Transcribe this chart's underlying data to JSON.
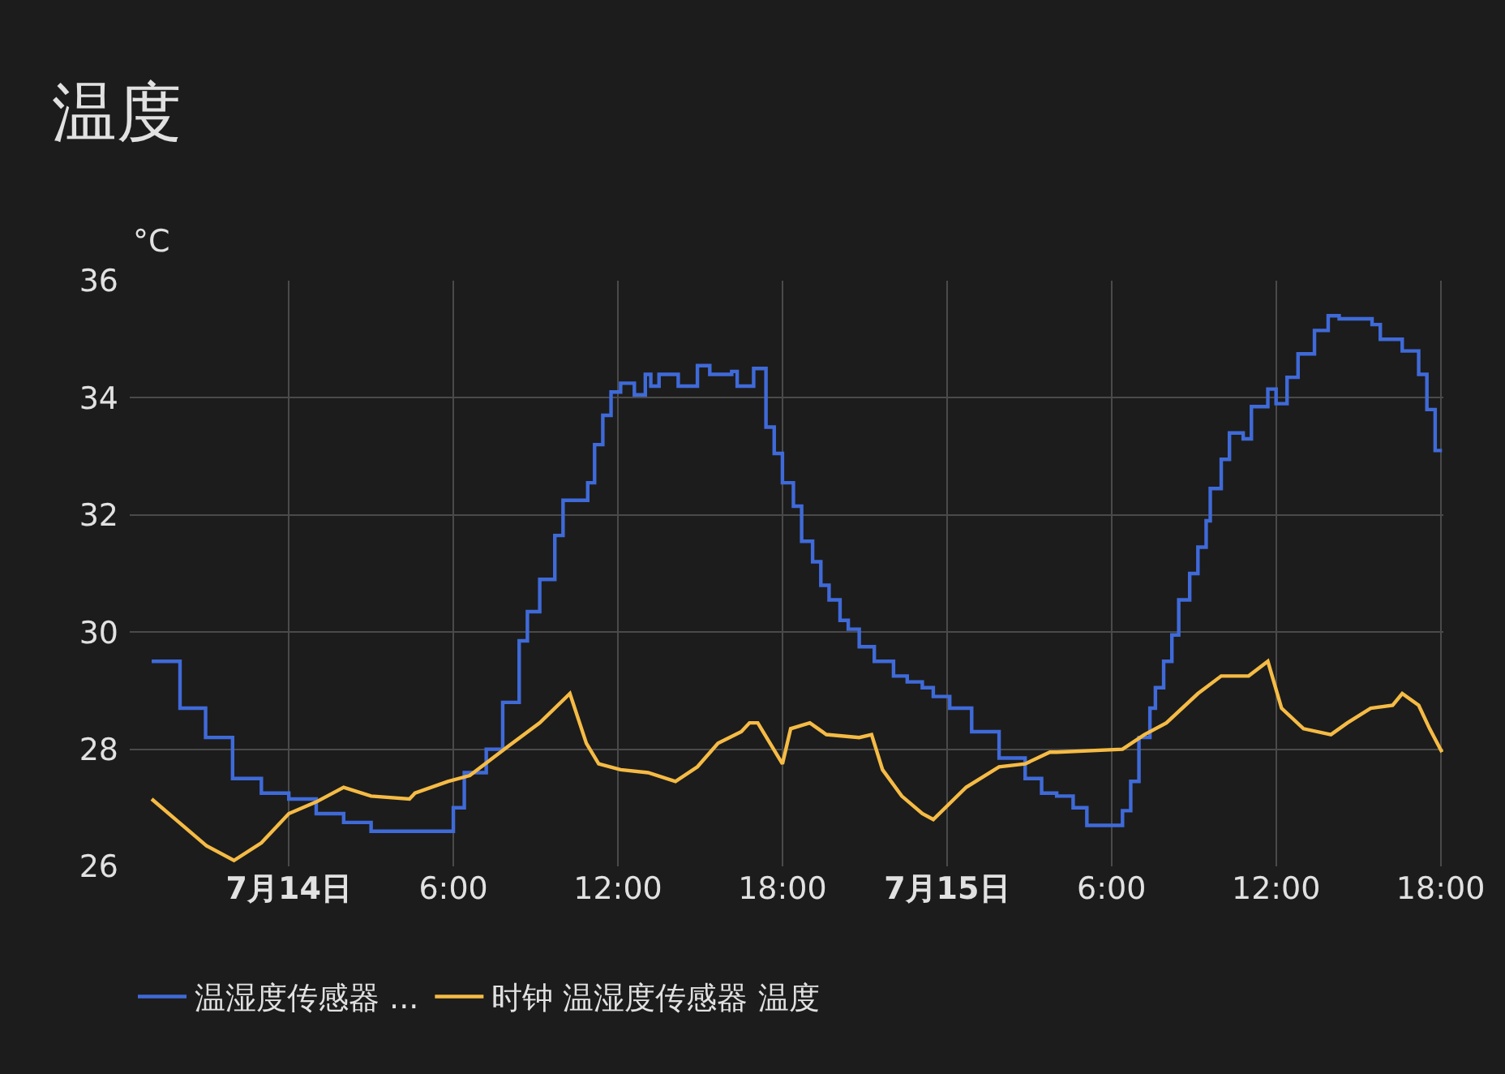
{
  "chart_data": {
    "type": "line",
    "title": "温度",
    "ylabel": "°C",
    "xlim": [
      "--07-13T18:12",
      "--07-15T18:06"
    ],
    "xticks": [
      {
        "value": "--07-14T00:00",
        "label": "7月14日"
      },
      {
        "value": "--07-14T06:00",
        "label": "6:00"
      },
      {
        "value": "--07-14T12:00",
        "label": "12:00"
      },
      {
        "value": "--07-14T18:00",
        "label": "18:00"
      },
      {
        "value": "--07-15T00:00",
        "label": "7月15日"
      },
      {
        "value": "--07-15T06:00",
        "label": "6:00"
      },
      {
        "value": "--07-15T12:00",
        "label": "12:00"
      },
      {
        "value": "--07-15T18:00",
        "label": "18:00"
      }
    ],
    "ylim": [
      26,
      36
    ],
    "yticks": [
      26,
      28,
      30,
      32,
      34,
      36
    ],
    "grid": true,
    "legend": "bottom",
    "marker": "none",
    "line_style": "solid",
    "series": [
      {
        "name": "温湿度传感器 ...",
        "type": "step",
        "color": "#3f6ad8",
        "x": [
          "--07-13T19:00",
          "--07-13T20:02",
          "--07-13T20:58",
          "--07-13T21:57",
          "--07-13T23:00",
          "--07-14T00:00",
          "--07-14T01:00",
          "--07-14T02:00",
          "--07-14T03:00",
          "--07-14T05:42",
          "--07-14T06:00",
          "--07-14T06:24",
          "--07-14T07:12",
          "--07-14T07:48",
          "--07-14T08:24",
          "--07-14T08:42",
          "--07-14T09:09",
          "--07-14T09:42",
          "--07-14T10:00",
          "--07-14T10:54",
          "--07-14T11:09",
          "--07-14T11:27",
          "--07-14T11:45",
          "--07-14T12:06",
          "--07-14T12:36",
          "--07-14T13:00",
          "--07-14T13:12",
          "--07-14T13:30",
          "--07-14T14:12",
          "--07-14T14:54",
          "--07-14T15:21",
          "--07-14T16:09",
          "--07-14T16:21",
          "--07-14T16:57",
          "--07-14T17:12",
          "--07-14T17:24",
          "--07-14T17:42",
          "--07-14T18:00",
          "--07-14T18:24",
          "--07-14T18:42",
          "--07-14T19:06",
          "--07-14T19:24",
          "--07-14T19:42",
          "--07-14T20:06",
          "--07-14T20:24",
          "--07-14T20:48",
          "--07-14T21:21",
          "--07-14T22:03",
          "--07-14T22:33",
          "--07-14T23:06",
          "--07-14T23:30",
          "--07-15T00:06",
          "--07-15T00:54",
          "--07-15T01:54",
          "--07-15T02:51",
          "--07-15T03:27",
          "--07-15T04:00",
          "--07-15T04:36",
          "--07-15T05:06",
          "--07-15T05:54",
          "--07-15T06:24",
          "--07-15T06:42",
          "--07-15T07:00",
          "--07-15T07:24",
          "--07-15T07:36",
          "--07-15T07:54",
          "--07-15T08:12",
          "--07-15T08:27",
          "--07-15T08:51",
          "--07-15T09:09",
          "--07-15T09:27",
          "--07-15T09:36",
          "--07-15T10:00",
          "--07-15T10:18",
          "--07-15T10:48",
          "--07-15T11:06",
          "--07-15T11:42",
          "--07-15T12:00",
          "--07-15T12:24",
          "--07-15T12:48",
          "--07-15T13:24",
          "--07-15T13:54",
          "--07-15T14:18",
          "--07-15T15:30",
          "--07-15T15:48",
          "--07-15T16:36",
          "--07-15T17:12",
          "--07-15T17:30",
          "--07-15T17:48",
          "--07-15T18:03"
        ],
        "values": [
          29.5,
          28.7,
          28.2,
          27.5,
          27.25,
          27.15,
          26.9,
          26.75,
          26.6,
          26.6,
          27.0,
          27.6,
          28.0,
          28.8,
          29.85,
          30.35,
          30.9,
          31.65,
          32.25,
          32.55,
          33.2,
          33.7,
          34.1,
          34.25,
          34.05,
          34.4,
          34.2,
          34.4,
          34.2,
          34.55,
          34.4,
          34.45,
          34.2,
          34.5,
          34.5,
          33.5,
          33.05,
          32.55,
          32.15,
          31.55,
          31.2,
          30.8,
          30.55,
          30.2,
          30.05,
          29.75,
          29.5,
          29.25,
          29.15,
          29.05,
          28.9,
          28.7,
          28.3,
          27.85,
          27.5,
          27.25,
          27.2,
          27.0,
          26.7,
          26.7,
          26.95,
          27.45,
          28.2,
          28.7,
          29.05,
          29.5,
          29.95,
          30.55,
          31.0,
          31.45,
          31.9,
          32.45,
          32.95,
          33.4,
          33.3,
          33.85,
          34.15,
          33.9,
          34.35,
          34.75,
          35.15,
          35.4,
          35.35,
          35.25,
          35.0,
          34.8,
          34.4,
          33.8,
          33.1,
          33.1
        ]
      },
      {
        "name": "时钟 温湿度传感器 温度",
        "color": "#f5bb45",
        "x": [
          "--07-13T19:00",
          "--07-13T20:00",
          "--07-13T21:00",
          "--07-13T22:00",
          "--07-13T23:00",
          "--07-14T00:00",
          "--07-14T01:00",
          "--07-14T02:00",
          "--07-14T03:00",
          "--07-14T04:24",
          "--07-14T04:36",
          "--07-14T05:48",
          "--07-14T06:36",
          "--07-14T08:00",
          "--07-14T09:09",
          "--07-14T10:15",
          "--07-14T10:51",
          "--07-14T11:18",
          "--07-14T12:06",
          "--07-14T13:06",
          "--07-14T14:06",
          "--07-14T14:54",
          "--07-14T15:39",
          "--07-14T16:30",
          "--07-14T16:48",
          "--07-14T17:06",
          "--07-14T18:00",
          "--07-14T18:18",
          "--07-14T19:00",
          "--07-14T19:36",
          "--07-14T20:48",
          "--07-14T21:15",
          "--07-14T21:39",
          "--07-14T22:21",
          "--07-14T23:06",
          "--07-14T23:30",
          "--07-15T00:42",
          "--07-15T01:54",
          "--07-15T02:51",
          "--07-15T03:45",
          "--07-15T04:00",
          "--07-15T06:24",
          "--07-15T07:12",
          "--07-15T08:00",
          "--07-15T09:09",
          "--07-15T10:00",
          "--07-15T11:00",
          "--07-15T11:42",
          "--07-15T12:12",
          "--07-15T13:00",
          "--07-15T14:00",
          "--07-15T14:36",
          "--07-15T15:27",
          "--07-15T16:15",
          "--07-15T16:36",
          "--07-15T17:12",
          "--07-15T17:36",
          "--07-15T18:03"
        ],
        "values": [
          27.15,
          26.75,
          26.35,
          26.1,
          26.4,
          26.9,
          27.1,
          27.35,
          27.2,
          27.15,
          27.25,
          27.45,
          27.55,
          28.05,
          28.45,
          28.95,
          28.1,
          27.75,
          27.65,
          27.6,
          27.45,
          27.7,
          28.1,
          28.3,
          28.45,
          28.45,
          27.75,
          28.35,
          28.45,
          28.25,
          28.2,
          28.25,
          27.65,
          27.2,
          26.9,
          26.8,
          27.35,
          27.7,
          27.75,
          27.95,
          27.95,
          28.0,
          28.25,
          28.45,
          28.95,
          29.25,
          29.25,
          29.5,
          28.7,
          28.35,
          28.25,
          28.45,
          28.7,
          28.75,
          28.95,
          28.75,
          28.35,
          27.95
        ]
      }
    ]
  }
}
